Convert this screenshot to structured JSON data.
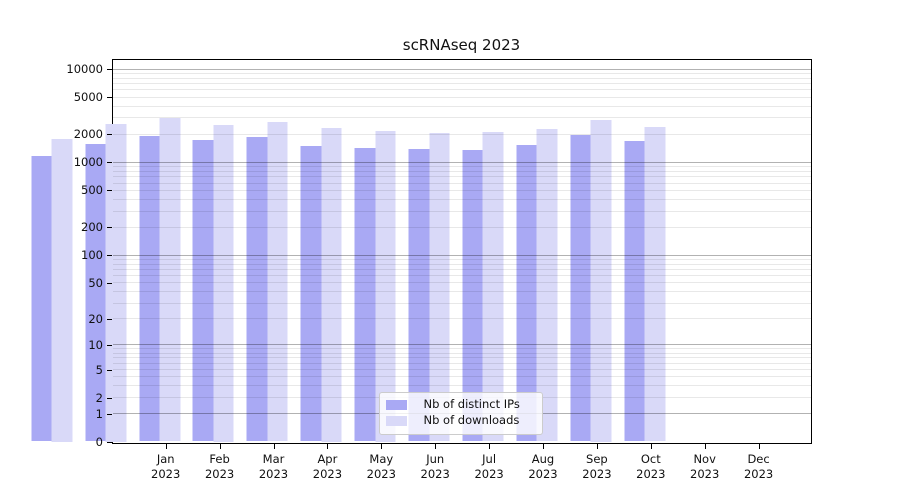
{
  "title": "scRNAseq 2023",
  "chart_data": {
    "type": "bar",
    "title": "scRNAseq 2023",
    "categories": [
      "Jan",
      "Feb",
      "Mar",
      "Apr",
      "May",
      "Jun",
      "Jul",
      "Aug",
      "Sep",
      "Oct",
      "Nov",
      "Dec"
    ],
    "category_year": "2023",
    "series": [
      {
        "name": "Nb of distinct IPs",
        "color": "#a9a9f4",
        "values": [
          1160,
          1540,
          1900,
          1710,
          1830,
          1470,
          1420,
          1360,
          1330,
          1520,
          1960,
          1680
        ]
      },
      {
        "name": "Nb of downloads",
        "color": "#d9d9f8",
        "values": [
          1780,
          2580,
          2950,
          2520,
          2650,
          2340,
          2170,
          2050,
          2080,
          2230,
          2850,
          2380
        ]
      }
    ],
    "yscale": "log1p",
    "yticks": [
      0,
      1,
      2,
      5,
      10,
      20,
      50,
      100,
      200,
      500,
      1000,
      2000,
      5000,
      10000
    ],
    "major_grid_values": [
      1,
      10,
      100,
      1000,
      10000
    ],
    "ylim": [
      0,
      12550
    ],
    "xlabel": "",
    "ylabel": "",
    "legend_position": "lower-center",
    "grid": "on",
    "colors": {
      "major_grid": "rgba(0,0,0,0.30)",
      "minor_grid": "rgba(0,0,0,0.09)",
      "frame": "#000000",
      "text": "#111111",
      "background": "#ffffff"
    }
  }
}
